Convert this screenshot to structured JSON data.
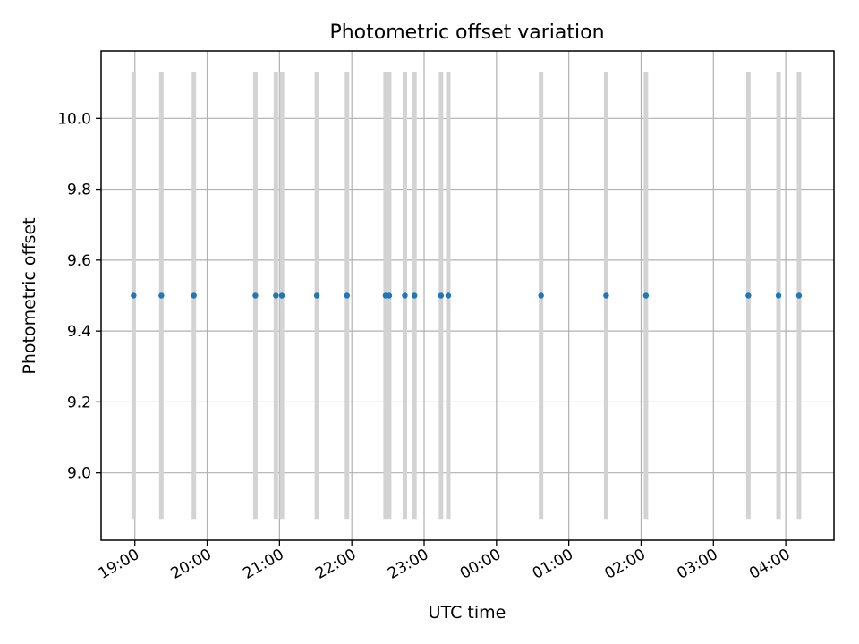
{
  "chart_data": {
    "type": "scatter",
    "title": "Photometric offset variation",
    "xlabel": "UTC time",
    "ylabel": "Photometric offset",
    "x_axis_type": "time",
    "xlim": [
      "18:32",
      "04:40"
    ],
    "ylim": [
      8.81,
      10.19
    ],
    "yticks": [
      9.0,
      9.2,
      9.4,
      9.6,
      9.8,
      10.0
    ],
    "ytick_labels": [
      "9.0",
      "9.2",
      "9.4",
      "9.6",
      "9.8",
      "10.0"
    ],
    "xticks": [
      "19:00",
      "20:00",
      "21:00",
      "22:00",
      "23:00",
      "00:00",
      "01:00",
      "02:00",
      "03:00",
      "04:00"
    ],
    "grid": true,
    "legend": "none",
    "colors": {
      "points": "#1f77b4",
      "error_bars": "#d3d3d3",
      "grid": "#b0b0b0"
    },
    "error_bar_range": [
      8.87,
      10.13
    ],
    "x": [
      "18:59",
      "19:22",
      "19:49",
      "20:40",
      "20:57",
      "21:02",
      "21:31",
      "21:56",
      "22:28",
      "22:31",
      "22:44",
      "22:52",
      "23:14",
      "23:20",
      "00:37",
      "01:31",
      "02:04",
      "03:29",
      "03:54",
      "04:11"
    ],
    "y": [
      9.5,
      9.5,
      9.5,
      9.5,
      9.5,
      9.5,
      9.5,
      9.5,
      9.5,
      9.5,
      9.5,
      9.5,
      9.5,
      9.5,
      9.5,
      9.5,
      9.5,
      9.5,
      9.5,
      9.5
    ]
  }
}
